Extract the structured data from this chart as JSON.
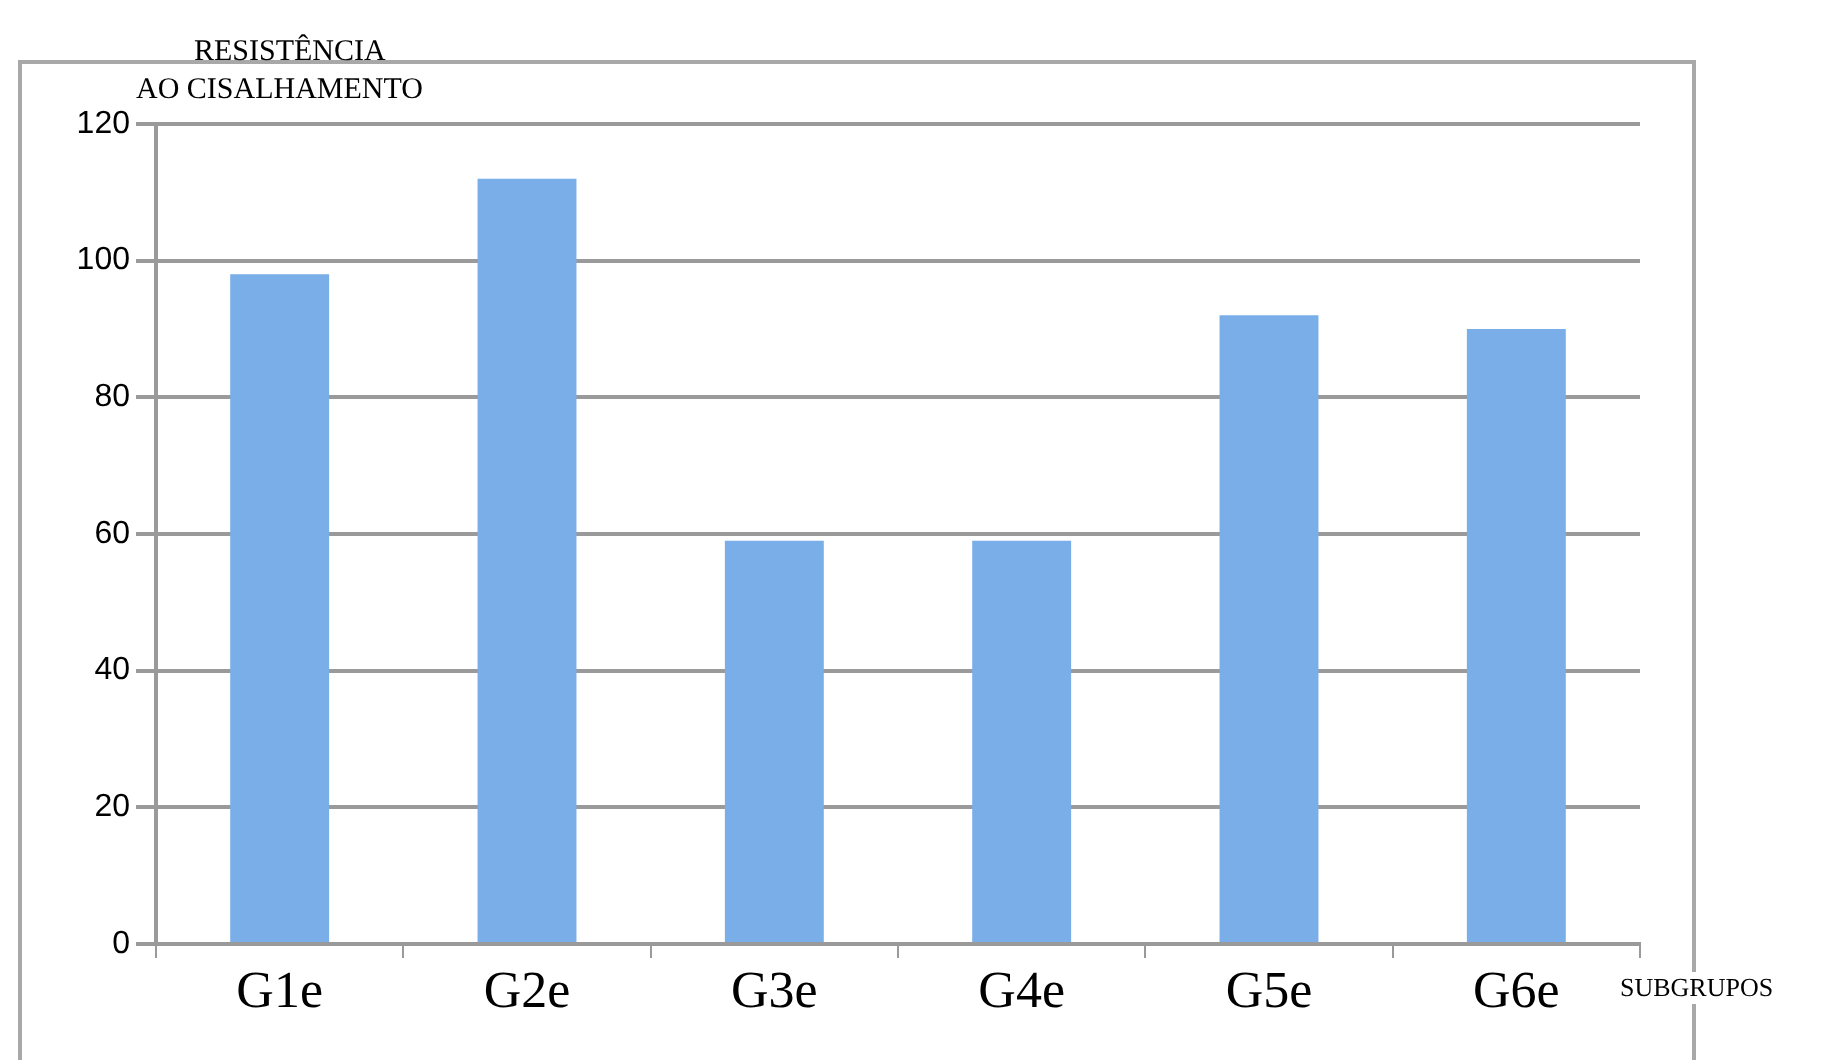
{
  "chart_data": {
    "type": "bar",
    "ylabel": "RESISTÊNCIA\nAO CISALHAMENTO",
    "xlabel": "SUBGRUPOS",
    "categories": [
      "G1e",
      "G2e",
      "G3e",
      "G4e",
      "G5e",
      "G6e"
    ],
    "values": [
      98,
      112,
      59,
      59,
      92,
      90
    ],
    "color": "#7aaee8",
    "ylim": [
      0,
      120
    ],
    "yticks": [
      0,
      20,
      40,
      60,
      80,
      100,
      120
    ],
    "grid": "y",
    "legend": false
  }
}
